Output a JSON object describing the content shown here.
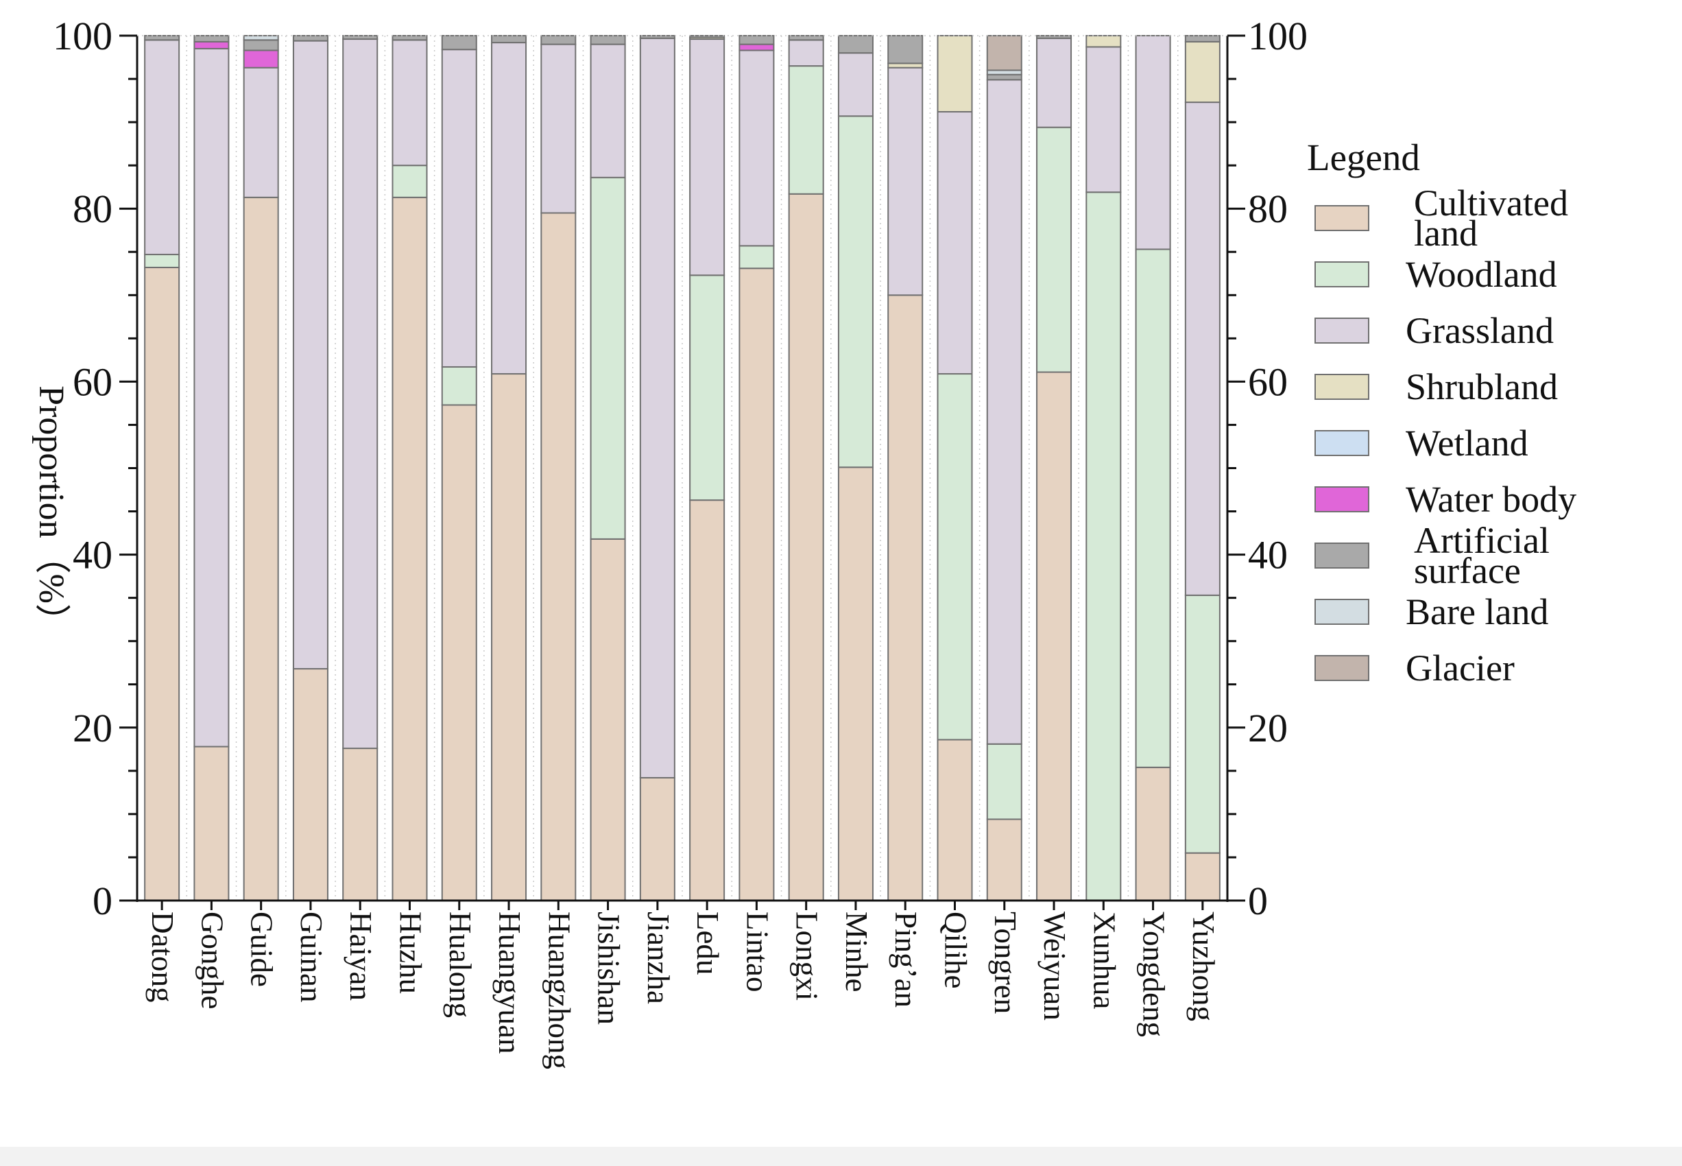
{
  "chart_data": {
    "type": "bar",
    "stacked": true,
    "title": "",
    "xlabel": "",
    "ylabel": "Proportion（%）",
    "ylim": [
      0,
      100
    ],
    "yticks": [
      0,
      20,
      40,
      60,
      80,
      100
    ],
    "grid": false,
    "legend_title": "Legend",
    "legend_position": "right",
    "categories": [
      "Datong",
      "Gonghe",
      "Guide",
      "Guinan",
      "Haiyan",
      "Huzhu",
      "Hualong",
      "Huangyuan",
      "Huangzhong",
      "Jishishan",
      "Jianzha",
      "Ledu",
      "Lintao",
      "Longxi",
      "Minhe",
      "Ping’an",
      "Qilihe",
      "Tongren",
      "Weiyuan",
      "Xunhua",
      "Yongdeng",
      "Yuzhong"
    ],
    "series": [
      {
        "name": "Cultivated land",
        "color": "#e6d3c2",
        "values": [
          73.2,
          17.8,
          81.3,
          26.8,
          17.6,
          81.3,
          57.3,
          60.9,
          79.5,
          41.8,
          14.2,
          46.3,
          73.1,
          81.7,
          50.1,
          70.0,
          18.6,
          9.4,
          61.1,
          0.0,
          15.4,
          5.5
        ]
      },
      {
        "name": "Woodland",
        "color": "#d6ead7",
        "values": [
          1.5,
          0.0,
          0.0,
          0.0,
          0.0,
          3.7,
          4.4,
          0.0,
          0.0,
          41.8,
          0.0,
          26.0,
          2.6,
          14.8,
          40.6,
          0.0,
          42.3,
          8.7,
          28.3,
          81.9,
          59.9,
          29.8
        ]
      },
      {
        "name": "Grassland",
        "color": "#dbd3e0",
        "values": [
          24.8,
          80.7,
          15.0,
          72.6,
          82.0,
          14.5,
          36.7,
          38.3,
          19.5,
          15.4,
          85.5,
          27.3,
          22.6,
          3.0,
          7.3,
          26.3,
          30.3,
          76.8,
          10.3,
          16.8,
          24.7,
          57.0
        ]
      },
      {
        "name": "Shrubland",
        "color": "#e5e0c3",
        "values": [
          0.0,
          0.0,
          0.0,
          0.0,
          0.0,
          0.0,
          0.0,
          0.0,
          0.0,
          0.0,
          0.0,
          0.2,
          0.0,
          0.0,
          0.0,
          0.5,
          8.8,
          0.0,
          0.0,
          1.3,
          0.0,
          7.0
        ]
      },
      {
        "name": "Wetland",
        "color": "#cddff2",
        "values": [
          0.0,
          0.0,
          0.0,
          0.0,
          0.0,
          0.0,
          0.0,
          0.0,
          0.0,
          0.0,
          0.0,
          0.0,
          0.0,
          0.0,
          0.0,
          0.0,
          0.0,
          0.0,
          0.0,
          0.0,
          0.0,
          0.0
        ]
      },
      {
        "name": "Water body",
        "color": "#e066d8",
        "values": [
          0.0,
          0.8,
          2.0,
          0.0,
          0.0,
          0.0,
          0.0,
          0.0,
          0.0,
          0.0,
          0.0,
          0.0,
          0.7,
          0.0,
          0.0,
          0.0,
          0.0,
          0.0,
          0.0,
          0.0,
          0.0,
          0.0
        ]
      },
      {
        "name": "Artificial surface",
        "color": "#a9a9a9",
        "values": [
          0.5,
          0.7,
          1.2,
          0.6,
          0.4,
          0.5,
          1.6,
          0.8,
          1.0,
          1.0,
          0.3,
          0.2,
          1.0,
          0.5,
          2.0,
          3.2,
          0.0,
          0.6,
          0.3,
          0.0,
          0.0,
          0.7
        ]
      },
      {
        "name": "Bare land",
        "color": "#d3dde2",
        "values": [
          0.0,
          0.0,
          0.5,
          0.0,
          0.0,
          0.0,
          0.0,
          0.0,
          0.0,
          0.0,
          0.0,
          0.0,
          0.0,
          0.0,
          0.0,
          0.0,
          0.0,
          0.5,
          0.0,
          0.0,
          0.0,
          0.0
        ]
      },
      {
        "name": "Glacier",
        "color": "#c2b4ac",
        "values": [
          0.0,
          0.0,
          0.0,
          0.0,
          0.0,
          0.0,
          0.0,
          0.0,
          0.0,
          0.0,
          0.0,
          0.0,
          0.0,
          0.0,
          0.0,
          0.0,
          0.0,
          4.0,
          0.0,
          0.0,
          0.0,
          0.0
        ]
      }
    ]
  }
}
